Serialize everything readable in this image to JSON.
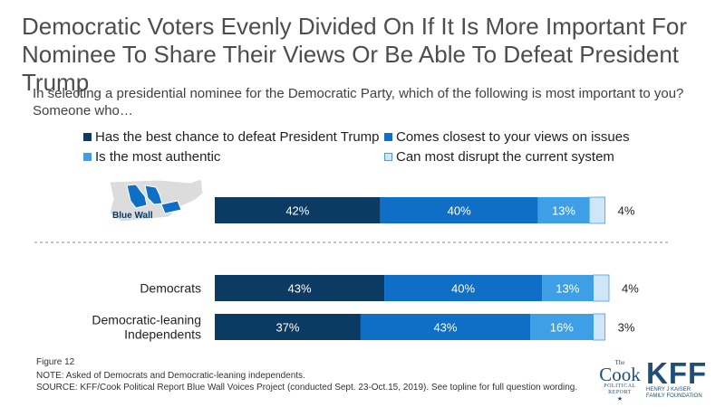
{
  "header": {
    "title": "Democratic Voters Evenly Divided On If It Is More Important For Nominee To Share Their Views Or Be Able To Defeat President Trump",
    "subtitle": "In selecting a presidential nominee for the Democratic Party, which of the following is most important to you? Someone who…"
  },
  "chart_data": {
    "type": "bar",
    "orientation": "horizontal",
    "stacked": true,
    "xlim": [
      0,
      100
    ],
    "legend_placement": "top",
    "categories": [
      "Blue Wall",
      "Democrats",
      "Democratic-leaning Independents"
    ],
    "series": [
      {
        "name": "Has the best chance to defeat President Trump",
        "color": "#0b3a62",
        "values": [
          42,
          43,
          37
        ]
      },
      {
        "name": "Comes closest to your views on issues",
        "color": "#0f6fc6",
        "values": [
          40,
          40,
          43
        ]
      },
      {
        "name": "Is the most authentic",
        "color": "#3f9fe6",
        "values": [
          13,
          13,
          16
        ]
      },
      {
        "name": "Can most disrupt the current system",
        "color": "#cfe6f8",
        "values": [
          4,
          4,
          3
        ]
      }
    ],
    "data_labels": [
      [
        "42%",
        "40%",
        "13%",
        "4%"
      ],
      [
        "43%",
        "40%",
        "13%",
        "4%"
      ],
      [
        "37%",
        "43%",
        "16%",
        "3%"
      ]
    ],
    "row_labels": [
      {
        "lines": []
      },
      {
        "lines": [
          "Democrats"
        ]
      },
      {
        "lines": [
          "Democratic-leaning",
          "Independents"
        ]
      }
    ],
    "map_label": "Blue Wall"
  },
  "footer": {
    "figure": "Figure 12",
    "note": "NOTE: Asked of Democrats and Democratic-leaning independents.",
    "source": "SOURCE: KFF/Cook Political Report Blue Wall Voices Project (conducted Sept. 23-Oct.15, 2019). See topline for full question wording."
  },
  "logos": {
    "cook_small": "The",
    "cook_main": "Cook",
    "cook_sub1": "POLITICAL",
    "cook_sub2": "REPORT",
    "kff_main": "KFF",
    "kff_sub1": "HENRY J KAISER",
    "kff_sub2": "FAMILY FOUNDATION"
  }
}
